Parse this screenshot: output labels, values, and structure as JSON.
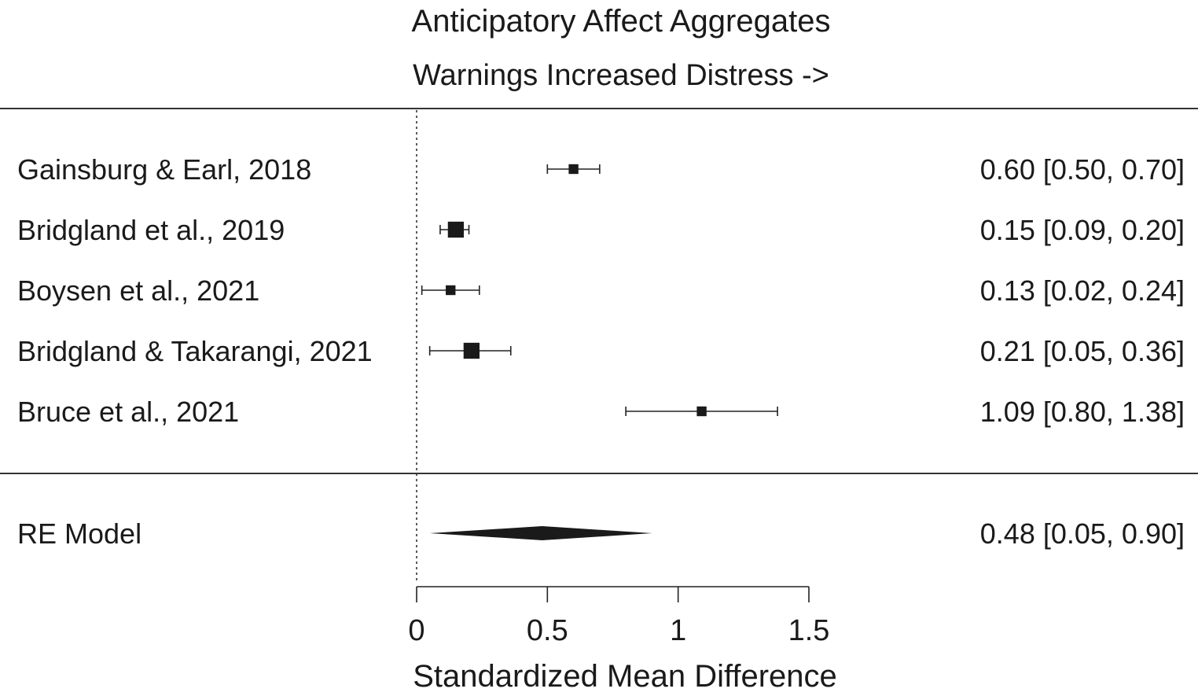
{
  "chart_data": {
    "type": "forest",
    "title": "Anticipatory Affect Aggregates",
    "subtitle": "Warnings Increased Distress ->",
    "xlabel": "Standardized Mean Difference",
    "xlim": [
      0,
      1.5
    ],
    "xticks": [
      0,
      0.5,
      1,
      1.5
    ],
    "xtick_labels": [
      "0",
      "0.5",
      "1",
      "1.5"
    ],
    "reference_line": 0,
    "studies": [
      {
        "label": "Gainsburg & Earl, 2018",
        "estimate": 0.6,
        "ci_low": 0.5,
        "ci_high": 0.7,
        "weight": 1,
        "text": "0.60 [0.50, 0.70]"
      },
      {
        "label": "Bridgland et al., 2019",
        "estimate": 0.15,
        "ci_low": 0.09,
        "ci_high": 0.2,
        "weight": 5,
        "text": "0.15 [0.09, 0.20]"
      },
      {
        "label": "Boysen et al., 2021",
        "estimate": 0.13,
        "ci_low": 0.02,
        "ci_high": 0.24,
        "weight": 1,
        "text": "0.13 [0.02, 0.24]"
      },
      {
        "label": "Bridgland & Takarangi, 2021",
        "estimate": 0.21,
        "ci_low": 0.05,
        "ci_high": 0.36,
        "weight": 5,
        "text": "0.21 [0.05, 0.36]"
      },
      {
        "label": "Bruce et al., 2021",
        "estimate": 1.09,
        "ci_low": 0.8,
        "ci_high": 1.38,
        "weight": 1,
        "text": "1.09 [0.80, 1.38]"
      }
    ],
    "summary": {
      "label": "RE Model",
      "estimate": 0.48,
      "ci_low": 0.05,
      "ci_high": 0.9,
      "text": "0.48 [0.05, 0.90]"
    }
  }
}
